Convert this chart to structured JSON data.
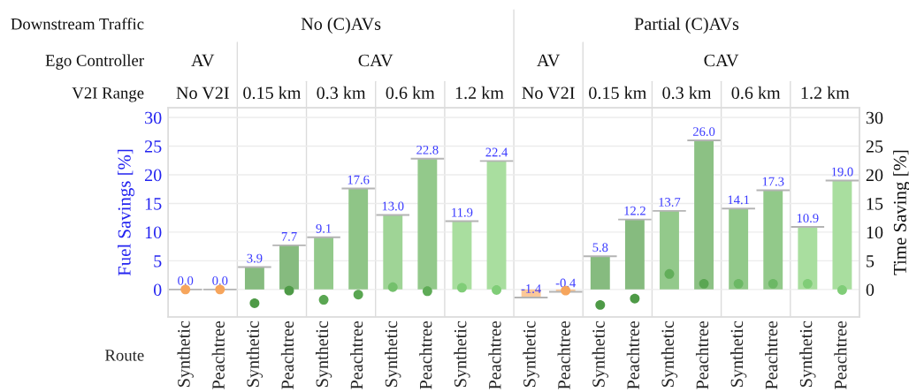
{
  "chart_data": {
    "type": "bar",
    "categories": [
      "Synthetic",
      "Peachtree",
      "Synthetic",
      "Peachtree",
      "Synthetic",
      "Peachtree",
      "Synthetic",
      "Peachtree",
      "Synthetic",
      "Peachtree",
      "Synthetic",
      "Peachtree",
      "Synthetic",
      "Peachtree",
      "Synthetic",
      "Peachtree",
      "Synthetic",
      "Peachtree",
      "Synthetic",
      "Peachtree"
    ],
    "xlabel": "Route",
    "ylabel": "Fuel Savings [%]",
    "y2label": "Time Saving [%]",
    "annotations": [
      "Downstream Traffic",
      "No (C)AVs",
      "Partial (C)AVs",
      "Ego Controller",
      "AV",
      "CAV",
      "AV",
      "CAV",
      "V2I Range",
      "No V2I",
      "0.15 km",
      "0.3 km",
      "0.6 km",
      "1.2 km",
      "No V2I",
      "0.15 km",
      "0.3 km",
      "0.6 km",
      "1.2 km"
    ],
    "ylim": [
      -4.8,
      31.7
    ],
    "yticks": [
      0,
      5,
      10,
      15,
      20,
      25,
      30
    ],
    "y2lim": [
      -4.8,
      31.7
    ],
    "y2ticks": [
      0,
      5,
      10,
      15,
      20,
      25,
      30
    ],
    "grid": "y",
    "series": [
      {
        "values": [
          0.0,
          0.0,
          3.9,
          7.7,
          9.1,
          17.6,
          13.0,
          22.8,
          11.9,
          22.4,
          -1.4,
          -0.4,
          5.8,
          12.2,
          13.7,
          26.0,
          14.1,
          17.3,
          10.9,
          19.0
        ],
        "value_labels": [
          "0.0",
          "0.0",
          "3.9",
          "7.7",
          "9.1",
          "17.6",
          "13.0",
          "22.8",
          "11.9",
          "22.4",
          "-1.4",
          "-0.4",
          "5.8",
          "12.2",
          "13.7",
          "26.0",
          "14.1",
          "17.3",
          "10.9",
          "19.0"
        ],
        "colors": [
          "#fcc898",
          "#fcc898",
          "#86bb7f",
          "#86bb7f",
          "#93c98b",
          "#8fc587",
          "#9fd496",
          "#93c98b",
          "#a9de9f",
          "#a9de9f",
          "#fcc898",
          "#fcc898",
          "#86bb7f",
          "#86bb7f",
          "#93c98b",
          "#8cc184",
          "#92c98a",
          "#92c98a",
          "#a9de9f",
          "#a9de9f"
        ]
      },
      {
        "type": "scatter",
        "axis": "y2",
        "marker": "circle",
        "values": [
          0,
          0,
          -2.4,
          -0.2,
          -1.8,
          -0.9,
          0.4,
          -0.3,
          0.3,
          -0.1,
          null,
          -0.2,
          -2.7,
          -1.6,
          2.7,
          1.0,
          1.0,
          1.0,
          1.0,
          -0.1
        ],
        "colors": [
          "#f6a55c",
          "#f6a55c",
          "#4e9a47",
          "#4e9a47",
          "#5aa652",
          "#5aa652",
          "#74c06c",
          "#5fab57",
          "#80cd78",
          "#80cd78",
          "#f6a55c",
          "#f6a55c",
          "#4e9a47",
          "#4e9a47",
          "#62ae5a",
          "#5aa652",
          "#6cb865",
          "#6cb865",
          "#80cd78",
          "#80cd78"
        ]
      }
    ]
  }
}
